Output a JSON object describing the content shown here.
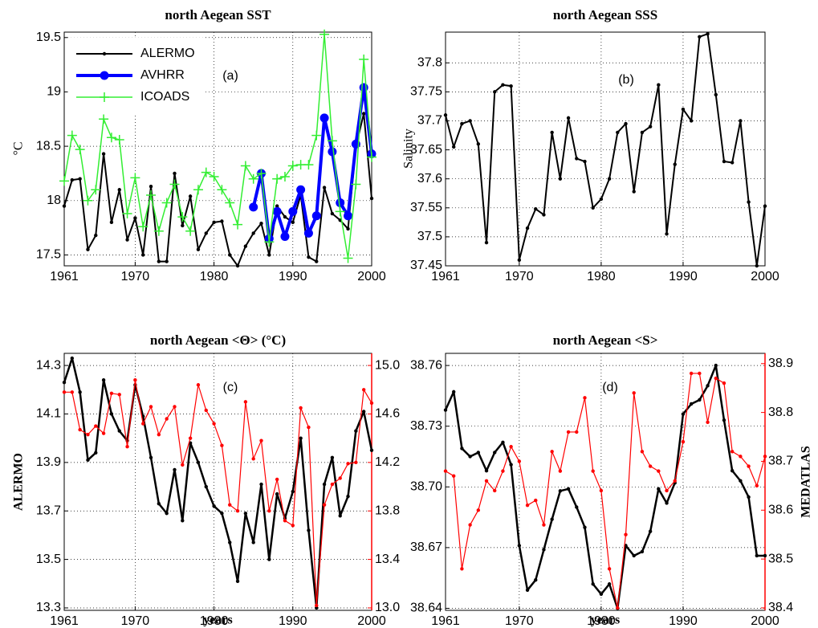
{
  "chart_data": [
    {
      "type": "line",
      "title": "north Aegean SST",
      "ylabel": "°C",
      "annotation": "(a)",
      "legend": "upper left",
      "grid": true,
      "x": [
        1961,
        1962,
        1963,
        1964,
        1965,
        1966,
        1967,
        1968,
        1969,
        1970,
        1971,
        1972,
        1973,
        1974,
        1975,
        1976,
        1977,
        1978,
        1979,
        1980,
        1981,
        1982,
        1983,
        1984,
        1985,
        1986,
        1987,
        1988,
        1989,
        1990,
        1991,
        1992,
        1993,
        1994,
        1995,
        1996,
        1997,
        1998,
        1999,
        2000
      ],
      "xlim": [
        1961,
        2000
      ],
      "xticks": [
        1961,
        1970,
        1980,
        1990,
        2000
      ],
      "ylim": [
        17.4,
        19.55
      ],
      "yticks": [
        17.5,
        18,
        18.5,
        19,
        19.5
      ],
      "series": [
        {
          "name": "ALERMO",
          "color": "#000000",
          "marker": "dot",
          "linewidth": 2,
          "values": [
            17.95,
            18.19,
            18.2,
            17.55,
            17.68,
            18.43,
            17.8,
            18.1,
            17.64,
            17.84,
            17.5,
            18.13,
            17.44,
            17.44,
            18.25,
            17.77,
            18.04,
            17.55,
            17.7,
            17.8,
            17.81,
            17.5,
            17.4,
            17.58,
            17.7,
            17.79,
            17.5,
            17.95,
            17.85,
            17.8,
            18.05,
            17.48,
            17.44,
            18.12,
            17.88,
            17.82,
            17.74,
            18.5,
            18.8,
            18.02
          ]
        },
        {
          "name": "AVHRR",
          "color": "#0000ff",
          "marker": "circle",
          "linewidth": 4,
          "values": [
            null,
            null,
            null,
            null,
            null,
            null,
            null,
            null,
            null,
            null,
            null,
            null,
            null,
            null,
            null,
            null,
            null,
            null,
            null,
            null,
            null,
            null,
            null,
            null,
            17.94,
            18.25,
            17.65,
            17.9,
            17.67,
            17.9,
            18.1,
            17.7,
            17.86,
            18.76,
            18.45,
            17.98,
            17.86,
            18.52,
            19.04,
            18.43
          ]
        },
        {
          "name": "ICOADS",
          "color": "#33ee33",
          "marker": "plus",
          "linewidth": 1.5,
          "values": [
            18.18,
            18.6,
            18.47,
            18.0,
            18.1,
            18.75,
            18.58,
            18.56,
            17.88,
            18.21,
            17.76,
            18.05,
            17.72,
            17.98,
            18.15,
            17.85,
            17.72,
            18.1,
            18.26,
            18.22,
            18.1,
            17.98,
            17.78,
            18.32,
            18.2,
            18.25,
            17.62,
            18.2,
            18.22,
            18.32,
            18.33,
            18.33,
            18.6,
            19.53,
            18.55,
            17.9,
            17.47,
            18.15,
            19.3,
            18.4
          ]
        }
      ]
    },
    {
      "type": "line",
      "title": "north Aegean SSS",
      "ylabel": "Salinity",
      "annotation": "(b)",
      "grid": true,
      "x": [
        1961,
        1962,
        1963,
        1964,
        1965,
        1966,
        1967,
        1968,
        1969,
        1970,
        1971,
        1972,
        1973,
        1974,
        1975,
        1976,
        1977,
        1978,
        1979,
        1980,
        1981,
        1982,
        1983,
        1984,
        1985,
        1986,
        1987,
        1988,
        1989,
        1990,
        1991,
        1992,
        1993,
        1994,
        1995,
        1996,
        1997,
        1998,
        1999,
        2000
      ],
      "xlim": [
        1961,
        2000
      ],
      "xticks": [
        1961,
        1970,
        1980,
        1990,
        2000
      ],
      "ylim": [
        37.45,
        37.853
      ],
      "yticks": [
        37.45,
        37.5,
        37.55,
        37.6,
        37.65,
        37.7,
        37.75,
        37.8
      ],
      "series": [
        {
          "color": "#000000",
          "marker": "dot",
          "linewidth": 2,
          "values": [
            37.71,
            37.655,
            37.695,
            37.7,
            37.66,
            37.49,
            37.75,
            37.762,
            37.76,
            37.46,
            37.515,
            37.548,
            37.538,
            37.68,
            37.6,
            37.705,
            37.635,
            37.63,
            37.55,
            37.565,
            37.6,
            37.68,
            37.695,
            37.578,
            37.68,
            37.69,
            37.762,
            37.505,
            37.625,
            37.72,
            37.7,
            37.845,
            37.85,
            37.745,
            37.63,
            37.628,
            37.7,
            37.56,
            37.45,
            37.553
          ]
        }
      ]
    },
    {
      "type": "line",
      "title": "north Aegean <Θ> (°C)",
      "ylabel": "ALERMO",
      "xlabel": "years",
      "annotation": "(c)",
      "grid": true,
      "y2_color": "#ff0000",
      "x": [
        1961,
        1962,
        1963,
        1964,
        1965,
        1966,
        1967,
        1968,
        1969,
        1970,
        1971,
        1972,
        1973,
        1974,
        1975,
        1976,
        1977,
        1978,
        1979,
        1980,
        1981,
        1982,
        1983,
        1984,
        1985,
        1986,
        1987,
        1988,
        1989,
        1990,
        1991,
        1992,
        1993,
        1994,
        1995,
        1996,
        1997,
        1998,
        1999,
        2000
      ],
      "xlim": [
        1961,
        2000
      ],
      "xticks": [
        1961,
        1970,
        1980,
        1990,
        2000
      ],
      "ylim": [
        13.29,
        14.35
      ],
      "yticks": [
        13.3,
        13.5,
        13.7,
        13.9,
        14.1,
        14.3
      ],
      "y2lim": [
        12.98,
        15.1
      ],
      "y2ticks": [
        {
          "value": 13,
          "label": "13.0"
        },
        13.4,
        13.8,
        14.2,
        14.6,
        {
          "value": 15,
          "label": "15.0"
        }
      ],
      "series": [
        {
          "color": "#000000",
          "marker": "dot",
          "linewidth": 2.5,
          "values": [
            14.23,
            14.33,
            14.19,
            13.91,
            13.94,
            14.24,
            14.1,
            14.03,
            13.99,
            14.22,
            14.09,
            13.92,
            13.73,
            13.69,
            13.87,
            13.66,
            13.98,
            13.9,
            13.8,
            13.72,
            13.69,
            13.57,
            13.41,
            13.69,
            13.57,
            13.81,
            13.5,
            13.77,
            13.67,
            13.78,
            14.0,
            13.62,
            13.3,
            13.81,
            13.92,
            13.68,
            13.76,
            14.03,
            14.11,
            13.95
          ]
        },
        {
          "color": "#ff0000",
          "marker": "dot",
          "linewidth": 1.2,
          "axis": "y2",
          "values": [
            14.78,
            14.78,
            14.47,
            14.43,
            14.5,
            14.44,
            14.77,
            14.76,
            14.33,
            14.88,
            14.52,
            14.66,
            14.43,
            14.56,
            14.66,
            14.18,
            14.4,
            14.84,
            14.63,
            14.52,
            14.34,
            13.85,
            13.8,
            14.7,
            14.23,
            14.38,
            13.8,
            14.06,
            13.72,
            13.68,
            14.65,
            14.49,
            13.02,
            13.85,
            14.02,
            14.07,
            14.19,
            14.2,
            14.8,
            14.69
          ]
        }
      ]
    },
    {
      "type": "line",
      "title": "north Aegean <S>",
      "y2label": "MEDATLAS",
      "xlabel": "years",
      "annotation": "(d)",
      "grid": true,
      "y2_color": "#ff0000",
      "x": [
        1961,
        1962,
        1963,
        1964,
        1965,
        1966,
        1967,
        1968,
        1969,
        1970,
        1971,
        1972,
        1973,
        1974,
        1975,
        1976,
        1977,
        1978,
        1979,
        1980,
        1981,
        1982,
        1983,
        1984,
        1985,
        1986,
        1987,
        1988,
        1989,
        1990,
        1991,
        1992,
        1993,
        1994,
        1995,
        1996,
        1997,
        1998,
        1999,
        2000
      ],
      "xlim": [
        1961,
        2000
      ],
      "xticks": [
        1961,
        1970,
        1980,
        1990,
        2000
      ],
      "ylim": [
        38.639,
        38.766
      ],
      "yticks": [
        38.64,
        38.67,
        {
          "value": 38.7,
          "label": "38.70"
        },
        38.73,
        38.76
      ],
      "y2lim": [
        38.395,
        38.921
      ],
      "y2ticks": [
        38.4,
        38.5,
        38.6,
        38.7,
        38.8,
        38.9
      ],
      "series": [
        {
          "color": "#000000",
          "marker": "dot",
          "linewidth": 2.5,
          "values": [
            38.738,
            38.747,
            38.719,
            38.715,
            38.717,
            38.708,
            38.717,
            38.722,
            38.711,
            38.671,
            38.649,
            38.654,
            38.669,
            38.684,
            38.698,
            38.699,
            38.69,
            38.68,
            38.652,
            38.647,
            38.652,
            38.64,
            38.671,
            38.666,
            38.668,
            38.678,
            38.699,
            38.692,
            38.702,
            38.736,
            38.741,
            38.743,
            38.75,
            38.76,
            38.733,
            38.708,
            38.703,
            38.695,
            38.666,
            38.666
          ]
        },
        {
          "color": "#ff0000",
          "marker": "dot",
          "linewidth": 1.2,
          "axis": "y2",
          "values": [
            38.68,
            38.67,
            38.48,
            38.57,
            38.6,
            38.66,
            38.64,
            38.68,
            38.73,
            38.7,
            38.61,
            38.62,
            38.57,
            38.72,
            38.68,
            38.76,
            38.76,
            38.83,
            38.68,
            38.64,
            38.48,
            38.4,
            38.55,
            38.84,
            38.72,
            38.69,
            38.68,
            38.64,
            38.66,
            38.74,
            38.88,
            38.88,
            38.78,
            38.87,
            38.86,
            38.72,
            38.71,
            38.69,
            38.65,
            38.71
          ]
        }
      ]
    }
  ]
}
